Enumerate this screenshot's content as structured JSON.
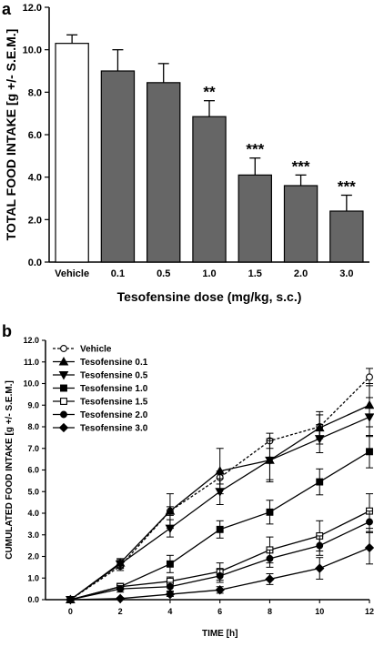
{
  "chart_data": [
    {
      "type": "bar",
      "panel_label": "a",
      "categories": [
        "Vehicle",
        "0.1",
        "0.5",
        "1.0",
        "1.5",
        "2.0",
        "3.0"
      ],
      "values": [
        10.3,
        9.0,
        8.45,
        6.85,
        4.1,
        3.6,
        2.4
      ],
      "errors": [
        0.4,
        1.0,
        0.9,
        0.75,
        0.8,
        0.5,
        0.75
      ],
      "significance": [
        "",
        "",
        "",
        "**",
        "***",
        "***",
        "***"
      ],
      "bar_colors": [
        "#ffffff",
        "#666666",
        "#666666",
        "#666666",
        "#666666",
        "#666666",
        "#666666"
      ],
      "xlabel": "Tesofensine dose (mg/kg, s.c.)",
      "ylabel": "TOTAL FOOD INTAKE [g +/- S.E.M.]",
      "ylim": [
        0,
        12
      ],
      "yticks": [
        "0.0",
        "2.0",
        "4.0",
        "6.0",
        "8.0",
        "10.0",
        "12.0"
      ],
      "grid": false
    },
    {
      "type": "line",
      "panel_label": "b",
      "x": [
        0,
        2,
        4,
        6,
        8,
        10,
        12
      ],
      "xticks": [
        "0",
        "2",
        "4",
        "6",
        "8",
        "10",
        "12"
      ],
      "series": [
        {
          "name": "Vehicle",
          "marker": "circle-open",
          "dashed": true,
          "values": [
            0,
            1.55,
            4.1,
            5.65,
            7.35,
            8.0,
            10.3
          ],
          "errors": [
            0,
            0.2,
            0.2,
            0.3,
            0.35,
            0.55,
            0.4
          ]
        },
        {
          "name": "Tesofensine 0.1",
          "marker": "triangle-up",
          "dashed": false,
          "values": [
            0,
            1.7,
            4.1,
            5.95,
            6.45,
            7.95,
            9.0
          ],
          "errors": [
            0,
            0.2,
            0.8,
            1.05,
            1.0,
            0.75,
            1.0
          ]
        },
        {
          "name": "Tesofensine 0.5",
          "marker": "triangle-down",
          "dashed": false,
          "values": [
            0,
            1.65,
            3.3,
            5.0,
            6.45,
            7.45,
            8.45
          ],
          "errors": [
            0,
            0.2,
            0.4,
            0.6,
            0.9,
            0.65,
            0.9
          ]
        },
        {
          "name": "Tesofensine 1.0",
          "marker": "square",
          "dashed": false,
          "values": [
            0,
            0.6,
            1.65,
            3.25,
            4.05,
            5.45,
            6.85
          ],
          "errors": [
            0,
            0.15,
            0.4,
            0.4,
            0.55,
            0.6,
            0.75
          ]
        },
        {
          "name": "Tesofensine 1.5",
          "marker": "square-open",
          "dashed": false,
          "values": [
            0,
            0.6,
            0.85,
            1.3,
            2.3,
            2.95,
            4.1
          ],
          "errors": [
            0,
            0.15,
            0.2,
            0.4,
            0.6,
            0.7,
            0.8
          ]
        },
        {
          "name": "Tesofensine 2.0",
          "marker": "circle",
          "dashed": false,
          "values": [
            0,
            0.5,
            0.6,
            1.1,
            1.9,
            2.5,
            3.6
          ],
          "errors": [
            0,
            0.15,
            0.2,
            0.3,
            0.4,
            0.45,
            0.5
          ]
        },
        {
          "name": "Tesofensine 3.0",
          "marker": "diamond",
          "dashed": false,
          "values": [
            0,
            0.05,
            0.25,
            0.45,
            0.95,
            1.45,
            2.4
          ],
          "errors": [
            0,
            0.05,
            0.1,
            0.15,
            0.25,
            0.5,
            0.75
          ]
        }
      ],
      "xlabel": "TIME [h]",
      "ylabel": "CUMULATED FOOD INTAKE [g +/- S.E.M.]",
      "xlim": [
        -1,
        12
      ],
      "ylim": [
        0,
        12
      ],
      "yticks": [
        "0.0",
        "1.0",
        "2.0",
        "3.0",
        "4.0",
        "5.0",
        "6.0",
        "7.0",
        "8.0",
        "9.0",
        "10.0",
        "11.0",
        "12.0"
      ],
      "legend": "top-left",
      "grid": false
    }
  ]
}
